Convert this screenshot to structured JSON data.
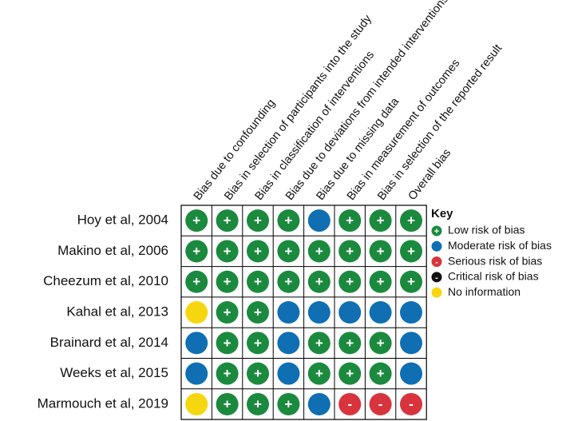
{
  "columns": [
    "Bias due to confounding",
    "Bias in selection of participants into the study",
    "Bias in classification of interventions",
    "Bias due to deviations from intended interventions",
    "Bias due to missing data",
    "Bias in measurement of outcomes",
    "Bias in selection of the reported result",
    "Overall bias"
  ],
  "rows": [
    {
      "study": "Hoy et al, 2004",
      "cells": [
        "#1b8a3e",
        "#1b8a3e",
        "#1b8a3e",
        "#1b8a3e",
        "#0f6fb2",
        "#1b8a3e",
        "#1b8a3e",
        "#1b8a3e"
      ]
    },
    {
      "study": "Makino et al, 2006",
      "cells": [
        "#1b8a3e",
        "#1b8a3e",
        "#1b8a3e",
        "#1b8a3e",
        "#1b8a3e",
        "#1b8a3e",
        "#1b8a3e",
        "#1b8a3e"
      ]
    },
    {
      "study": "Cheezum et al, 2010",
      "cells": [
        "#1b8a3e",
        "#1b8a3e",
        "#1b8a3e",
        "#1b8a3e",
        "#1b8a3e",
        "#1b8a3e",
        "#1b8a3e",
        "#1b8a3e"
      ]
    },
    {
      "study": "Kahal et al, 2013",
      "cells": [
        "#f6d60f",
        "#1b8a3e",
        "#1b8a3e",
        "#0f6fb2",
        "#0f6fb2",
        "#0f6fb2",
        "#0f6fb2",
        "#0f6fb2"
      ]
    },
    {
      "study": "Brainard et al, 2014",
      "cells": [
        "#0f6fb2",
        "#1b8a3e",
        "#1b8a3e",
        "#0f6fb2",
        "#1b8a3e",
        "#1b8a3e",
        "#1b8a3e",
        "#0f6fb2"
      ]
    },
    {
      "study": "Weeks et al, 2015",
      "cells": [
        "#0f6fb2",
        "#1b8a3e",
        "#1b8a3e",
        "#0f6fb2",
        "#1b8a3e",
        "#1b8a3e",
        "#1b8a3e",
        "#0f6fb2"
      ]
    },
    {
      "study": "Marmouch et al, 2019",
      "cells": [
        "#f6d60f",
        "#1b8a3e",
        "#1b8a3e",
        "#1b8a3e",
        "#0f6fb2",
        "#d8343d",
        "#d8343d",
        "#d8343d"
      ]
    }
  ],
  "key": {
    "title": "Key",
    "items": [
      {
        "color": "#1b8a3e",
        "symbol": "+",
        "label": "Low risk of bias"
      },
      {
        "color": "#0f6fb2",
        "label": "Moderate risk of bias"
      },
      {
        "color": "#d8343d",
        "symbol": "-",
        "label": "Serious risk of bias"
      },
      {
        "color": "#111111",
        "symbol": "-",
        "label": "Critical risk of bias"
      },
      {
        "color": "#f6d60f",
        "label": "No information"
      }
    ]
  }
}
